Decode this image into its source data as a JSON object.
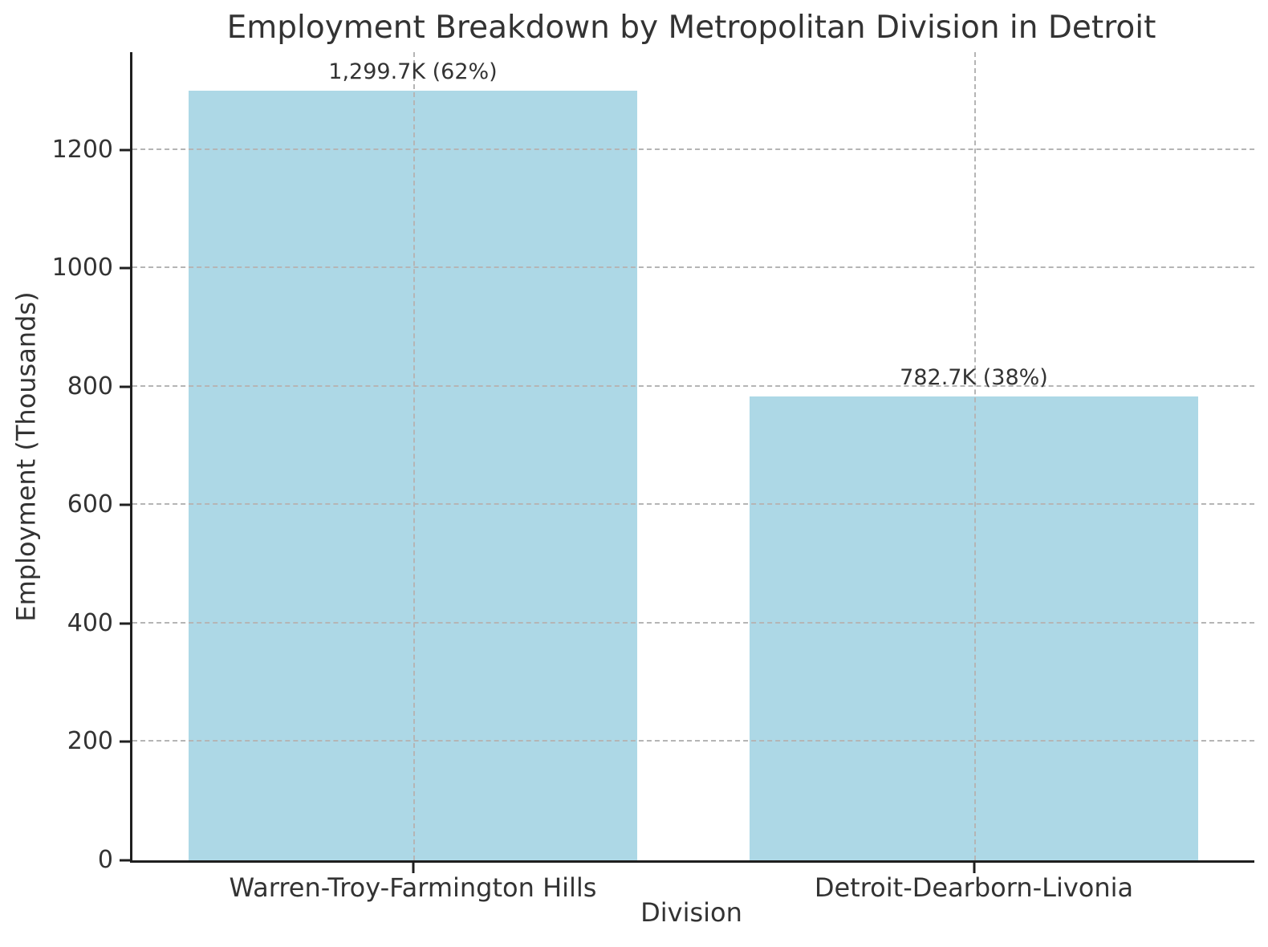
{
  "chart_data": {
    "type": "bar",
    "title": "Employment Breakdown by Metropolitan Division in Detroit",
    "xlabel": "Division",
    "ylabel": "Employment (Thousands)",
    "categories": [
      "Warren-Troy-Farmington Hills",
      "Detroit-Dearborn-Livonia"
    ],
    "values": [
      1299.7,
      782.7
    ],
    "bar_labels": [
      "1,299.7K (62%)",
      "782.7K (38%)"
    ],
    "yticks": [
      0,
      200,
      400,
      600,
      800,
      1000,
      1200
    ],
    "ylim": [
      0,
      1364.7
    ],
    "bar_width_fraction": 0.8,
    "grid": "dashed, horizontal at yticks and vertical at bar centers, drawn above bars",
    "legend": "none",
    "colors": {
      "bar": "#ADD8E6",
      "grid": "#b5b5b5",
      "axis": "#1f1f1f",
      "text": "#333333",
      "background": "#ffffff"
    }
  }
}
